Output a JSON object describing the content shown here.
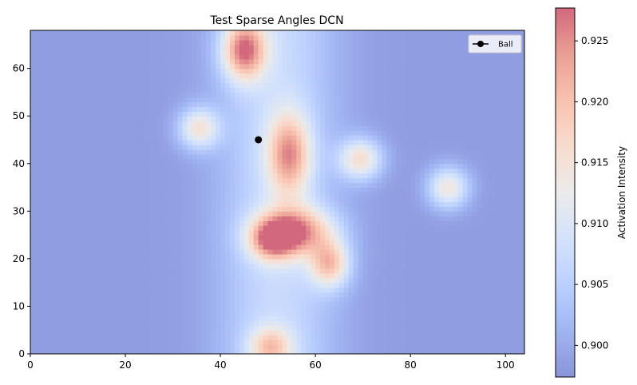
{
  "chart_data": [
    {
      "type": "heatmap",
      "title": "Test Sparse Angles DCN",
      "xlabel": "",
      "ylabel": "",
      "xlim": [
        0,
        104
      ],
      "ylim": [
        0,
        68
      ],
      "xticks": [
        0,
        20,
        40,
        60,
        80,
        100
      ],
      "yticks": [
        0,
        10,
        20,
        30,
        40,
        50,
        60
      ],
      "colormap": "coolwarm",
      "colormap_alpha": 0.6,
      "value_range": [
        0.8974,
        0.9277
      ],
      "background_level": 0.8985,
      "central_band": {
        "x_center": 52,
        "width": 12,
        "amplitude": 0.0085
      },
      "hotspots": [
        {
          "x": 45,
          "y": 64,
          "peak": 0.927,
          "sx": 3.2,
          "sy": 4.5
        },
        {
          "x": 35.5,
          "y": 47.5,
          "peak": 0.918,
          "sx": 3.0,
          "sy": 3.0
        },
        {
          "x": 54.5,
          "y": 42,
          "peak": 0.922,
          "sx": 3.2,
          "sy": 6.0
        },
        {
          "x": 69.5,
          "y": 41,
          "peak": 0.919,
          "sx": 3.2,
          "sy": 3.0
        },
        {
          "x": 88,
          "y": 35,
          "peak": 0.918,
          "sx": 3.0,
          "sy": 3.0
        },
        {
          "x": 56,
          "y": 26,
          "peak": 0.923,
          "sx": 5.5,
          "sy": 3.5
        },
        {
          "x": 51,
          "y": 24,
          "peak": 0.921,
          "sx": 3.5,
          "sy": 3.0
        },
        {
          "x": 63,
          "y": 19,
          "peak": 0.921,
          "sx": 3.0,
          "sy": 3.5
        },
        {
          "x": 50.5,
          "y": 1.5,
          "peak": 0.917,
          "sx": 3.2,
          "sy": 3.0
        }
      ],
      "series": [
        {
          "name": "Ball",
          "type": "scatter",
          "color": "#000000",
          "points": [
            {
              "x": 48,
              "y": 45
            }
          ]
        }
      ],
      "legend": {
        "location": "upper right"
      },
      "grid": false
    },
    {
      "type": "colorbar",
      "label": "Activation Intensity",
      "range": [
        0.8974,
        0.9277
      ],
      "ticks": [
        "0.900",
        "0.905",
        "0.910",
        "0.915",
        "0.920",
        "0.925"
      ]
    }
  ]
}
